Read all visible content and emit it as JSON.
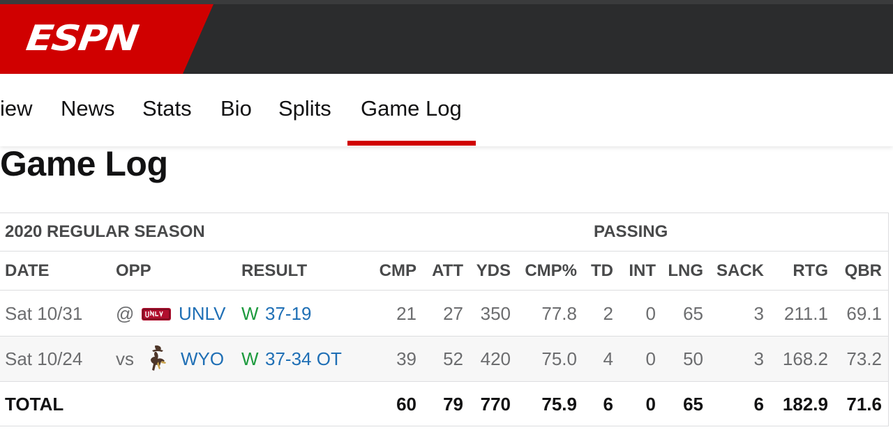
{
  "header": {
    "brand": "ESPN",
    "brand_color": "#d00000"
  },
  "subnav": {
    "tabs": [
      {
        "label": "iew"
      },
      {
        "label": "News"
      },
      {
        "label": "Stats"
      },
      {
        "label": "Bio"
      },
      {
        "label": "Splits"
      },
      {
        "label": "Game Log",
        "active": true
      }
    ]
  },
  "page": {
    "title": "Game Log"
  },
  "table": {
    "season_label": "2020 REGULAR SEASON",
    "group_label": "PASSING",
    "columns": [
      "DATE",
      "OPP",
      "RESULT",
      "CMP",
      "ATT",
      "YDS",
      "CMP%",
      "TD",
      "INT",
      "LNG",
      "SACK",
      "RTG",
      "QBR"
    ],
    "rows": [
      {
        "date": "Sat 10/31",
        "loc": "@",
        "team_logo": "unlv-logo-icon",
        "team": "UNLV",
        "result_flag": "W",
        "result_score": "37-19",
        "stats": [
          "21",
          "27",
          "350",
          "77.8",
          "2",
          "0",
          "65",
          "3",
          "211.1",
          "69.1"
        ]
      },
      {
        "date": "Sat 10/24",
        "loc": "vs",
        "team_logo": "wyoming-cowboy-logo-icon",
        "team": "WYO",
        "result_flag": "W",
        "result_score": "37-34 OT",
        "stats": [
          "39",
          "52",
          "420",
          "75.0",
          "4",
          "0",
          "50",
          "3",
          "168.2",
          "73.2"
        ]
      }
    ],
    "total": {
      "label": "TOTAL",
      "stats": [
        "60",
        "79",
        "770",
        "75.9",
        "6",
        "0",
        "65",
        "6",
        "182.9",
        "71.6"
      ]
    }
  },
  "colors": {
    "link": "#1f6fb5",
    "win": "#1c9a3d",
    "accent": "#d00000"
  }
}
